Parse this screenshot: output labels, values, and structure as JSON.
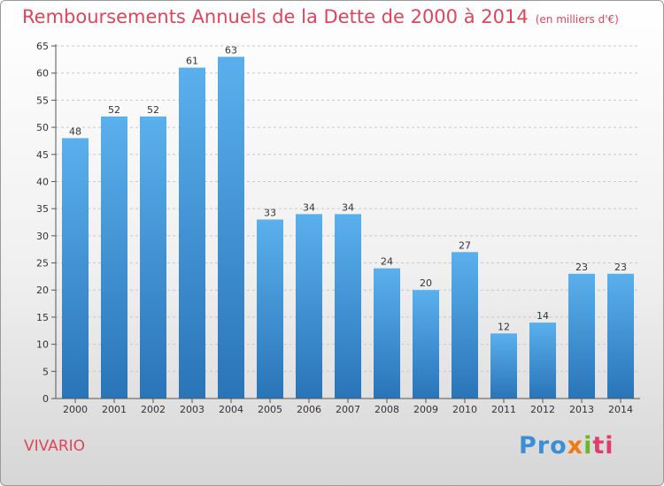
{
  "chart_data": {
    "type": "bar",
    "title": "Remboursements Annuels de la Dette de 2000 à 2014",
    "unit_note": "(en milliers d'€)",
    "categories": [
      "2000",
      "2001",
      "2002",
      "2003",
      "2004",
      "2005",
      "2006",
      "2007",
      "2008",
      "2009",
      "2010",
      "2011",
      "2012",
      "2013",
      "2014"
    ],
    "values": [
      48,
      52,
      52,
      61,
      63,
      33,
      34,
      34,
      24,
      20,
      27,
      12,
      14,
      23,
      23
    ],
    "ylim": [
      0,
      65
    ],
    "yticks": [
      0,
      5,
      10,
      15,
      20,
      25,
      30,
      35,
      40,
      45,
      50,
      55,
      60,
      65
    ],
    "xlabel": "",
    "ylabel": "",
    "grid": true,
    "bar_color": "#4a9fe0",
    "bar_color_dark": "#2a74b8"
  },
  "footer": {
    "place": "VIVARIO",
    "brand": [
      "Pro",
      "x",
      "i",
      "ti"
    ]
  },
  "colors": {
    "title": "#e0445a",
    "brand_blue": "#3a8fd6",
    "brand_orange": "#f07a12",
    "brand_green": "#6fb52c",
    "brand_pink": "#e23c6a"
  }
}
